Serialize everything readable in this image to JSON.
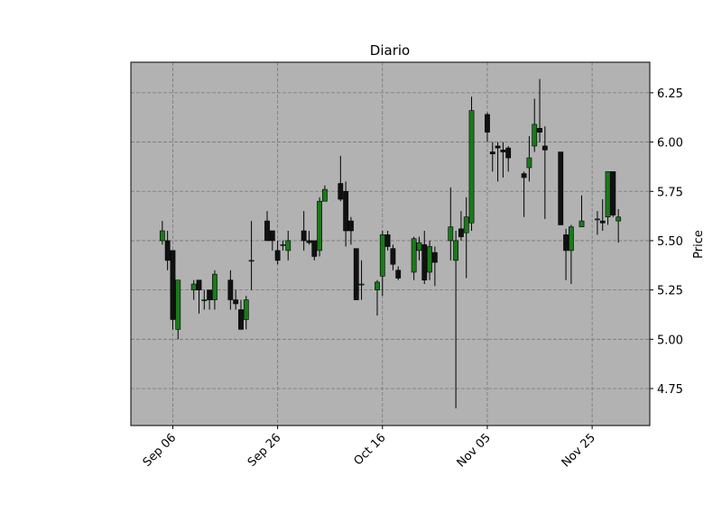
{
  "chart_data": {
    "type": "candlestick",
    "title": "Diario",
    "y_label": "Price",
    "x": [
      "Sep 04",
      "Sep 05",
      "Sep 06",
      "Sep 07",
      "Sep 10",
      "Sep 11",
      "Sep 12",
      "Sep 13",
      "Sep 14",
      "Sep 17",
      "Sep 18",
      "Sep 19",
      "Sep 20",
      "Sep 21",
      "Sep 24",
      "Sep 25",
      "Sep 26",
      "Sep 27",
      "Sep 28",
      "Oct 01",
      "Oct 02",
      "Oct 03",
      "Oct 04",
      "Oct 05",
      "Oct 08",
      "Oct 09",
      "Oct 10",
      "Oct 11",
      "Oct 12",
      "Oct 15",
      "Oct 16",
      "Oct 17",
      "Oct 18",
      "Oct 19",
      "Oct 22",
      "Oct 23",
      "Oct 24",
      "Oct 25",
      "Oct 26",
      "Oct 29",
      "Oct 30",
      "Oct 31",
      "Nov 01",
      "Nov 02",
      "Nov 05",
      "Nov 06",
      "Nov 07",
      "Nov 08",
      "Nov 09",
      "Nov 12",
      "Nov 13",
      "Nov 14",
      "Nov 15",
      "Nov 16",
      "Nov 19",
      "Nov 20",
      "Nov 21",
      "Nov 23",
      "Nov 26",
      "Nov 27",
      "Nov 28",
      "Nov 29",
      "Nov 30"
    ],
    "open": [
      5.5,
      5.5,
      5.45,
      5.05,
      5.25,
      5.3,
      5.2,
      5.25,
      5.2,
      5.3,
      5.2,
      5.15,
      5.1,
      5.4,
      5.6,
      5.55,
      5.45,
      5.48,
      5.45,
      5.55,
      5.5,
      5.5,
      5.45,
      5.7,
      5.79,
      5.75,
      5.6,
      5.46,
      5.28,
      5.25,
      5.32,
      5.53,
      5.46,
      5.35,
      5.34,
      5.45,
      5.48,
      5.34,
      5.44,
      5.5,
      5.4,
      5.56,
      5.54,
      5.59,
      6.14,
      5.95,
      5.98,
      5.96,
      5.97,
      5.84,
      5.87,
      5.98,
      6.07,
      5.98,
      5.95,
      5.53,
      5.45,
      5.57,
      5.61,
      5.6,
      5.62,
      5.85,
      5.6
    ],
    "high": [
      5.6,
      5.55,
      5.45,
      5.3,
      5.3,
      5.3,
      5.25,
      5.25,
      5.35,
      5.35,
      5.25,
      5.2,
      5.22,
      5.6,
      5.65,
      5.55,
      5.5,
      5.5,
      5.55,
      5.65,
      5.55,
      5.5,
      5.72,
      5.78,
      5.93,
      5.8,
      5.62,
      5.46,
      5.4,
      5.3,
      5.55,
      5.55,
      5.48,
      5.37,
      5.52,
      5.52,
      5.55,
      5.5,
      5.47,
      5.77,
      5.55,
      5.65,
      5.72,
      6.23,
      6.15,
      6.0,
      6.0,
      6.0,
      5.98,
      5.85,
      6.03,
      6.22,
      6.32,
      6.08,
      5.95,
      5.56,
      5.58,
      5.73,
      5.65,
      5.71,
      5.85,
      5.85,
      5.66
    ],
    "low": [
      5.48,
      5.35,
      5.05,
      5.0,
      5.2,
      5.13,
      5.15,
      5.15,
      5.15,
      5.15,
      5.15,
      5.05,
      5.05,
      5.25,
      5.5,
      5.45,
      5.38,
      5.45,
      5.4,
      5.45,
      5.48,
      5.4,
      5.42,
      5.7,
      5.7,
      5.47,
      5.48,
      5.2,
      5.2,
      5.12,
      5.22,
      5.45,
      5.35,
      5.3,
      5.3,
      5.4,
      5.28,
      5.3,
      5.27,
      5.4,
      4.65,
      5.5,
      5.31,
      5.55,
      6.0,
      5.85,
      5.8,
      5.82,
      5.85,
      5.62,
      5.8,
      5.95,
      6.0,
      5.61,
      5.58,
      5.3,
      5.28,
      5.57,
      5.53,
      5.55,
      5.58,
      5.62,
      5.49
    ],
    "close": [
      5.55,
      5.4,
      5.1,
      5.3,
      5.28,
      5.25,
      5.2,
      5.2,
      5.33,
      5.2,
      5.18,
      5.05,
      5.2,
      5.4,
      5.5,
      5.5,
      5.4,
      5.48,
      5.5,
      5.5,
      5.49,
      5.42,
      5.7,
      5.76,
      5.71,
      5.55,
      5.55,
      5.2,
      5.28,
      5.29,
      5.53,
      5.47,
      5.38,
      5.31,
      5.51,
      5.49,
      5.3,
      5.47,
      5.39,
      5.57,
      5.5,
      5.52,
      5.62,
      6.16,
      6.05,
      5.94,
      5.97,
      5.95,
      5.92,
      5.82,
      5.92,
      6.09,
      6.05,
      5.96,
      5.58,
      5.45,
      5.57,
      5.6,
      5.61,
      5.59,
      5.85,
      5.63,
      5.62
    ],
    "up_color": "#1a7a1a",
    "down_color": "#111111",
    "background": "#b2b2b2",
    "xlim": [
      "Aug 29",
      "Dec 06"
    ],
    "xticks": [
      "Sep 06",
      "Sep 26",
      "Oct 16",
      "Nov 05",
      "Nov 25"
    ],
    "ylim": [
      4.5625,
      6.405
    ],
    "yticks": [
      4.75,
      {
        "value": 5.0,
        "label": "5.00"
      },
      5.25,
      {
        "value": 5.5,
        "label": "5.50"
      },
      5.75,
      {
        "value": 6.0,
        "label": "6.00"
      },
      6.25
    ],
    "grid": true
  }
}
